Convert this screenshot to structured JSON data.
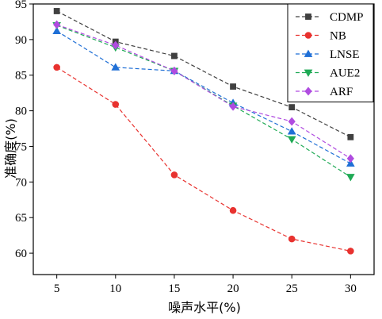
{
  "chart_data": {
    "type": "line",
    "xlabel": "噪声水平(%)",
    "ylabel": "准确度(%)",
    "x": [
      5,
      10,
      15,
      20,
      25,
      30
    ],
    "xticks": [
      5,
      10,
      15,
      20,
      25,
      30
    ],
    "yticks": [
      60,
      65,
      70,
      75,
      80,
      85,
      90,
      95
    ],
    "xlim": [
      3,
      32
    ],
    "ylim": [
      57,
      95
    ],
    "grid": false,
    "legend_position": "top-right",
    "series": [
      {
        "name": "CDMP",
        "color": "#404040",
        "marker": "square",
        "values": [
          94.0,
          89.7,
          87.7,
          83.4,
          80.5,
          76.3
        ]
      },
      {
        "name": "NB",
        "color": "#e8322f",
        "marker": "circle",
        "values": [
          86.1,
          80.9,
          71.0,
          66.0,
          62.0,
          60.3
        ]
      },
      {
        "name": "LNSE",
        "color": "#1f6fd6",
        "marker": "triangle-up",
        "values": [
          91.2,
          86.1,
          85.6,
          81.1,
          77.1,
          72.6
        ]
      },
      {
        "name": "AUE2",
        "color": "#1faa55",
        "marker": "triangle-down",
        "values": [
          92.0,
          88.9,
          85.6,
          80.7,
          76.0,
          70.7
        ]
      },
      {
        "name": "ARF",
        "color": "#b04ce0",
        "marker": "diamond",
        "values": [
          92.1,
          89.2,
          85.6,
          80.6,
          78.5,
          73.3
        ]
      }
    ]
  }
}
